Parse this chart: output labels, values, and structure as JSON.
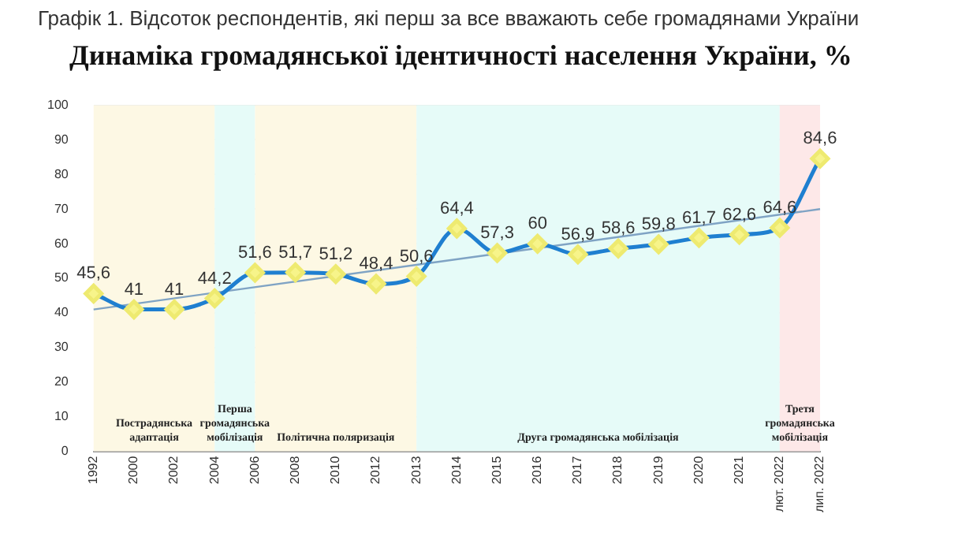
{
  "chart_data": {
    "type": "line",
    "title": "Графік 1.  Відсоток респондентів, які перш за все вважають себе громадянами України",
    "subtitle": "Динаміка громадянської ідентичності населення України, %",
    "categories": [
      "1992",
      "2000",
      "2002",
      "2004",
      "2006",
      "2008",
      "2010",
      "2012",
      "2013",
      "2014",
      "2015",
      "2016",
      "2017",
      "2018",
      "2019",
      "2020",
      "2021",
      "лют. 2022",
      "лип. 2022"
    ],
    "series": [
      {
        "color": "#1f7fd0",
        "values": [
          45.6,
          41,
          41,
          44.2,
          51.6,
          51.7,
          51.2,
          48.4,
          50.6,
          64.4,
          57.3,
          60,
          56.9,
          58.6,
          59.8,
          61.7,
          62.6,
          64.6,
          84.6
        ],
        "value_labels": [
          "45,6",
          "41",
          "41",
          "44,2",
          "51,6",
          "51,7",
          "51,2",
          "48,4",
          "50,6",
          "64,4",
          "57,3",
          "60",
          "56,9",
          "58,6",
          "59,8",
          "61,7",
          "62,6",
          "64,6",
          "84,6"
        ],
        "marker": "diamond"
      },
      {
        "type": "line",
        "color": "#7fa3c4",
        "values": [
          41,
          null,
          null,
          null,
          null,
          null,
          null,
          null,
          null,
          null,
          null,
          null,
          null,
          null,
          null,
          null,
          null,
          null,
          70
        ],
        "marker": "none"
      }
    ],
    "ylim": [
      0,
      100
    ],
    "yticks": [
      0,
      10,
      20,
      30,
      40,
      50,
      60,
      70,
      80,
      90,
      100
    ],
    "grid": "y",
    "legend": false,
    "bands": [
      {
        "axis": "x",
        "from": "1992",
        "to": "2004",
        "label": "Пострадянська адаптація",
        "color": "#fdf8e4"
      },
      {
        "axis": "x",
        "from": "2004",
        "to": "2006",
        "label": "Перша громадянська мобілізація",
        "color": "#e6fbf8"
      },
      {
        "axis": "x",
        "from": "2006",
        "to": "2013",
        "label": "Політична поляризація",
        "color": "#fdf8e4"
      },
      {
        "axis": "x",
        "from": "2013",
        "to": "лют. 2022",
        "label": "Друга громадянська мобілізація",
        "color": "#e6fbf8"
      },
      {
        "axis": "x",
        "from": "лют. 2022",
        "to": "лип. 2022",
        "label": "Третя громадянська мобілізація",
        "color": "#fde8e8"
      }
    ]
  }
}
